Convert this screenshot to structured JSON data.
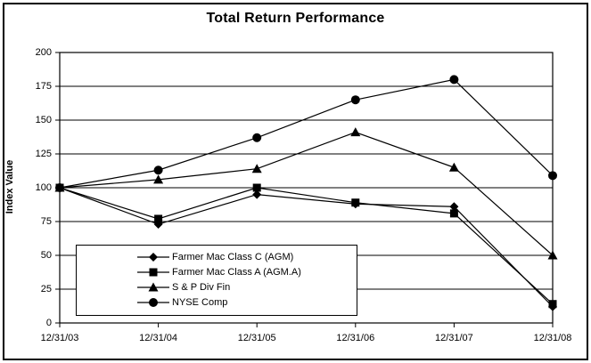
{
  "window": {
    "background_color": "#ffffff",
    "frame_border_color": "#000000"
  },
  "chart_data": {
    "type": "line",
    "title": "Total Return Performance",
    "xlabel": "",
    "ylabel": "Index Value",
    "categories": [
      "12/31/03",
      "12/31/04",
      "12/31/05",
      "12/31/06",
      "12/31/07",
      "12/31/08"
    ],
    "series": [
      {
        "name": "Farmer Mac Class C (AGM)",
        "marker": "diamond",
        "values": [
          100,
          73,
          95,
          88,
          86,
          12
        ]
      },
      {
        "name": "Farmer Mac Class A (AGM.A)",
        "marker": "square",
        "values": [
          100,
          77,
          100,
          89,
          81,
          14
        ]
      },
      {
        "name": "S & P Div Fin",
        "marker": "triangle",
        "values": [
          100,
          106,
          114,
          141,
          115,
          50
        ]
      },
      {
        "name": "NYSE Comp",
        "marker": "circle",
        "values": [
          100,
          113,
          137,
          165,
          180,
          109
        ]
      }
    ],
    "ylim": [
      0,
      200
    ],
    "ytick_step": 25,
    "grid": true,
    "line_color": "#000000",
    "marker_color": "#000000",
    "legend_position": "inside-bottom-left"
  }
}
